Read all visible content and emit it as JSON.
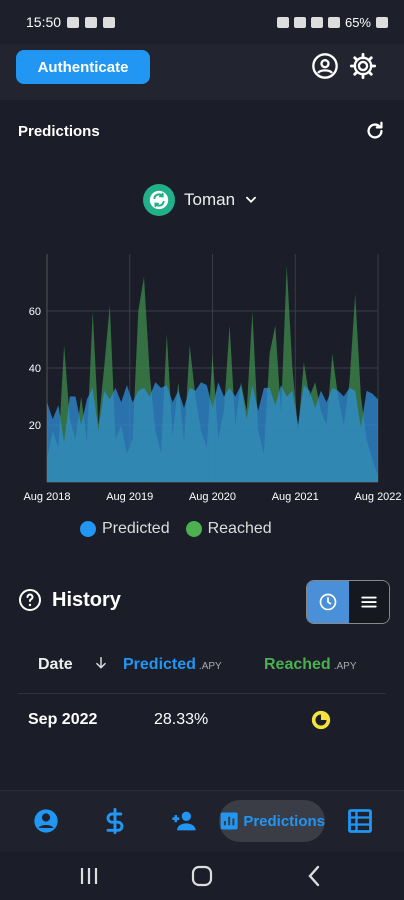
{
  "status_bar": {
    "time": "15:50",
    "battery": "65%"
  },
  "header": {
    "authenticate_label": "Authenticate",
    "account_icon": "account-circle-icon",
    "settings_icon": "gear-icon"
  },
  "predictions": {
    "title": "Predictions",
    "refresh_icon": "refresh-icon",
    "currency": "Toman"
  },
  "chart_data": {
    "type": "area",
    "x_tick_labels": [
      "Aug 2018",
      "Aug 2019",
      "Aug 2020",
      "Aug 2021",
      "Aug 2022"
    ],
    "y_tick_labels": [
      "20",
      "40",
      "60"
    ],
    "ylim": [
      0,
      80
    ],
    "grid": true,
    "legend_position": "bottom",
    "series": [
      {
        "name": "Predicted",
        "color": "#2f8fd8",
        "values": [
          28,
          22,
          27,
          14,
          30,
          30,
          20,
          29,
          33,
          18,
          32,
          29,
          33,
          28,
          34,
          28,
          32,
          33,
          30,
          35,
          33,
          34,
          28,
          32,
          26,
          33,
          32,
          35,
          34,
          26,
          35,
          30,
          33,
          30,
          34,
          22,
          34,
          25,
          33,
          33,
          27,
          34,
          30,
          32,
          20,
          34,
          32,
          26,
          32,
          28,
          33,
          32,
          30,
          33,
          32,
          19,
          32,
          31,
          29
        ]
      },
      {
        "name": "Reached",
        "color": "#3d8c4a",
        "values": [
          8,
          18,
          12,
          48,
          22,
          15,
          30,
          14,
          60,
          20,
          40,
          62,
          15,
          20,
          10,
          15,
          60,
          72,
          38,
          18,
          10,
          52,
          16,
          35,
          14,
          48,
          30,
          18,
          12,
          45,
          15,
          25,
          55,
          20,
          35,
          25,
          60,
          18,
          10,
          45,
          55,
          24,
          76,
          40,
          18,
          42,
          30,
          35,
          25,
          20,
          45,
          30,
          20,
          35,
          66,
          30,
          15,
          8,
          2
        ]
      }
    ]
  },
  "history": {
    "title": "History",
    "columns": {
      "date": "Date",
      "predicted": "Predicted",
      "predicted_unit": "APY",
      "reached": "Reached",
      "reached_unit": "APY"
    },
    "rows": [
      {
        "date": "Sep 2022",
        "predicted": "28.33%",
        "reached_icon": "pending-icon"
      }
    ]
  },
  "navbar": {
    "active_label": "Predictions",
    "items": [
      "account-icon",
      "dollar-icon",
      "add-user-icon",
      "predictions-icon",
      "table-icon"
    ]
  },
  "colors": {
    "accent": "#2196f3",
    "predicted": "#2f8fd8",
    "reached": "#4caf50",
    "background": "#1b1d28"
  }
}
